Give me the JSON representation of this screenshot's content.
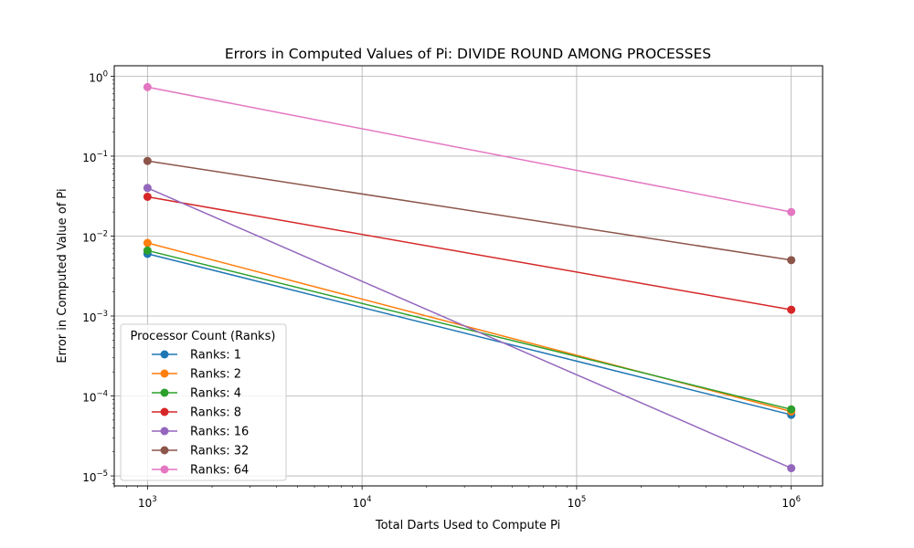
{
  "chart_data": {
    "type": "line",
    "title": "Errors in Computed Values of Pi: DIVIDE ROUND AMONG PROCESSES",
    "xlabel": "Total Darts Used to Compute Pi",
    "ylabel": "Error in Computed Value of Pi",
    "xscale": "log",
    "yscale": "log",
    "xlim": [
      700,
      1400000
    ],
    "ylim": [
      7.5e-06,
      1.35
    ],
    "grid": true,
    "x": [
      1000,
      1000000
    ],
    "x_ticks": [
      {
        "value": 1000,
        "base": "10",
        "exp": "3"
      },
      {
        "value": 10000,
        "base": "10",
        "exp": "4"
      },
      {
        "value": 100000,
        "base": "10",
        "exp": "5"
      },
      {
        "value": 1000000,
        "base": "10",
        "exp": "6"
      }
    ],
    "y_ticks": [
      {
        "value": 1e-05,
        "base": "10",
        "exp": "−5"
      },
      {
        "value": 0.0001,
        "base": "10",
        "exp": "−4"
      },
      {
        "value": 0.001,
        "base": "10",
        "exp": "−3"
      },
      {
        "value": 0.01,
        "base": "10",
        "exp": "−2"
      },
      {
        "value": 0.1,
        "base": "10",
        "exp": "−1"
      },
      {
        "value": 1,
        "base": "10",
        "exp": "0"
      }
    ],
    "legend": {
      "title": "Processor Count (Ranks)",
      "position": "lower-left"
    },
    "series": [
      {
        "name": "Ranks: 1",
        "color": "#1f77b4",
        "values": [
          0.006,
          5.8e-05
        ]
      },
      {
        "name": "Ranks: 2",
        "color": "#ff7f0e",
        "values": [
          0.0082,
          6.4e-05
        ]
      },
      {
        "name": "Ranks: 4",
        "color": "#2ca02c",
        "values": [
          0.0066,
          6.8e-05
        ]
      },
      {
        "name": "Ranks: 8",
        "color": "#d62728",
        "values": [
          0.031,
          0.0012
        ]
      },
      {
        "name": "Ranks: 16",
        "color": "#9467bd",
        "values": [
          0.04,
          1.25e-05
        ]
      },
      {
        "name": "Ranks: 32",
        "color": "#8c564b",
        "values": [
          0.087,
          0.005
        ]
      },
      {
        "name": "Ranks: 64",
        "color": "#e377c2",
        "values": [
          0.73,
          0.02
        ]
      }
    ]
  }
}
